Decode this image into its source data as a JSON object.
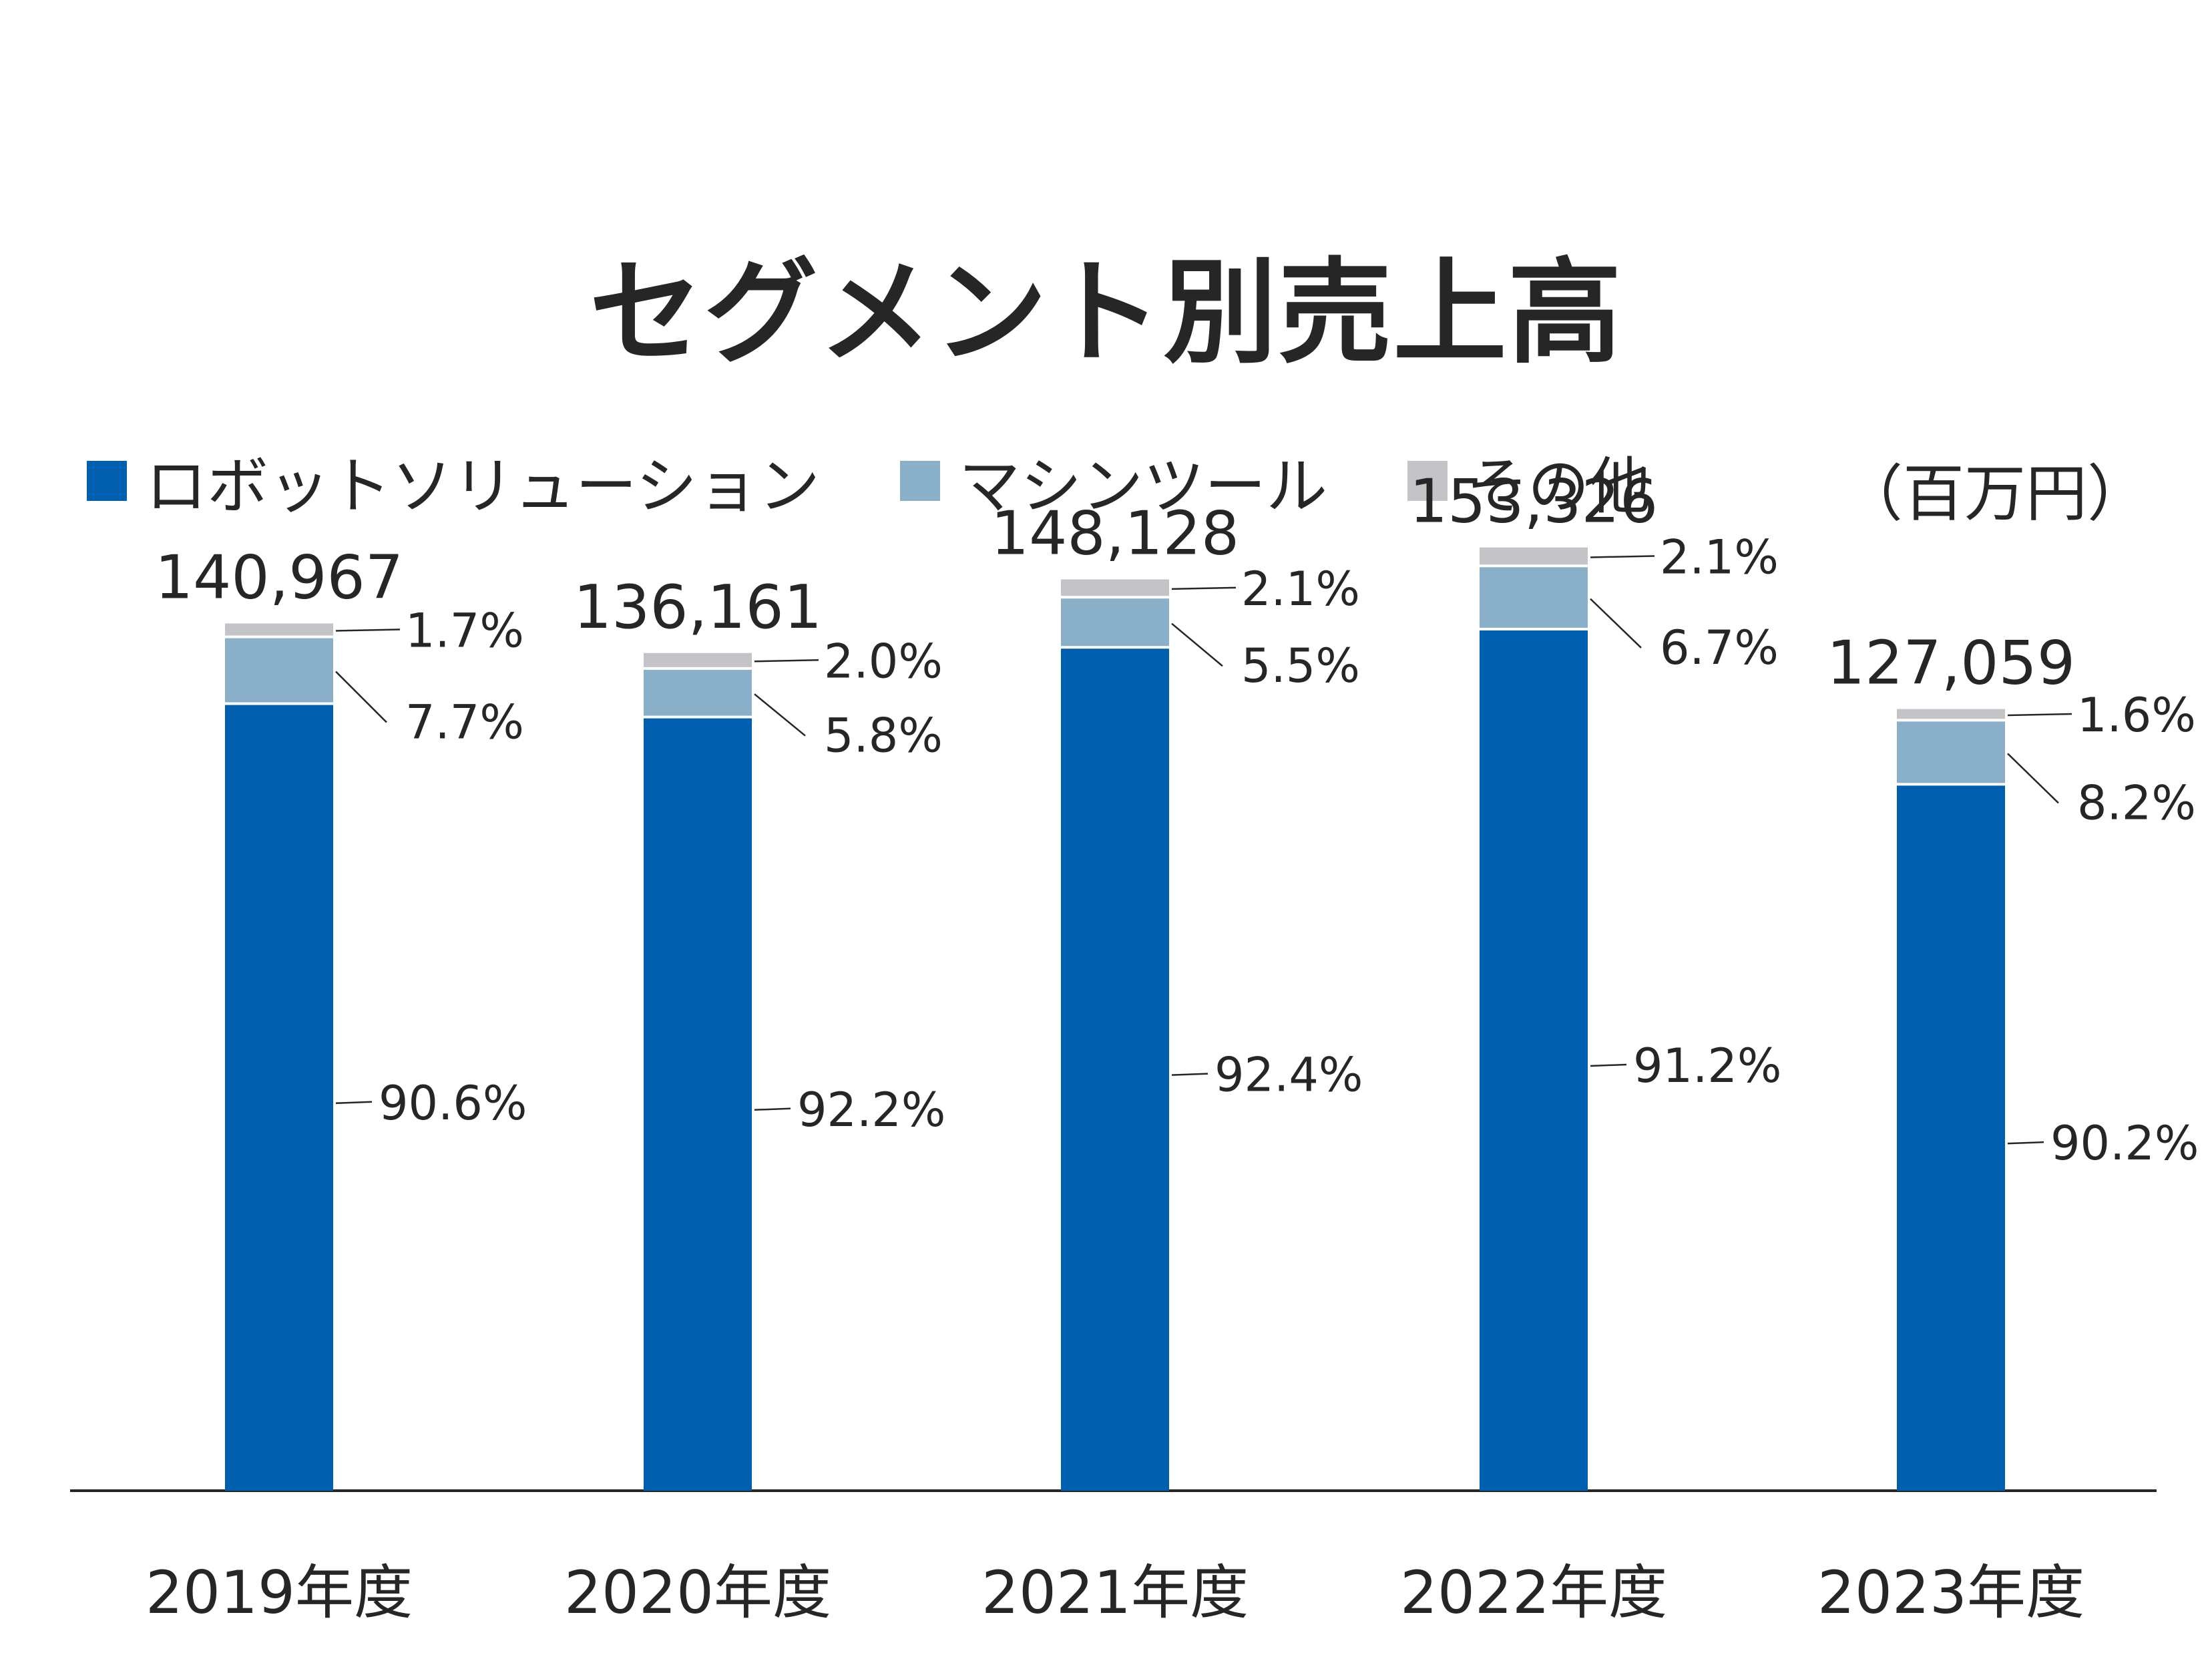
{
  "chart_data": {
    "type": "bar",
    "stacked": true,
    "title": "セグメント別売上高",
    "unit": "（百万円）",
    "categories": [
      "2019年度",
      "2020年度",
      "2021年度",
      "2022年度",
      "2023年度"
    ],
    "totals": [
      140967,
      136161,
      148128,
      153326,
      127059
    ],
    "total_labels": [
      "140,967",
      "136,161",
      "148,128",
      "153,326",
      "127,059"
    ],
    "series": [
      {
        "name": "ロボットソリューション",
        "color": "#005eae",
        "share_pct": [
          90.6,
          92.2,
          92.4,
          91.2,
          90.2
        ],
        "labels": [
          "90.6%",
          "92.2%",
          "92.4%",
          "91.2%",
          "90.2%"
        ]
      },
      {
        "name": "マシンツール",
        "color": "#8aafc8",
        "share_pct": [
          7.7,
          5.8,
          5.5,
          6.7,
          8.2
        ],
        "labels": [
          "7.7%",
          "5.8%",
          "5.5%",
          "6.7%",
          "8.2%"
        ]
      },
      {
        "name": "その他",
        "color": "#c3c3c8",
        "share_pct": [
          1.7,
          2.0,
          2.1,
          2.1,
          1.6
        ],
        "labels": [
          "1.7%",
          "2.0%",
          "2.1%",
          "2.1%",
          "1.6%"
        ]
      }
    ],
    "ylim": [
      0,
      175000
    ],
    "grid": false,
    "legend_position": "top-left"
  }
}
